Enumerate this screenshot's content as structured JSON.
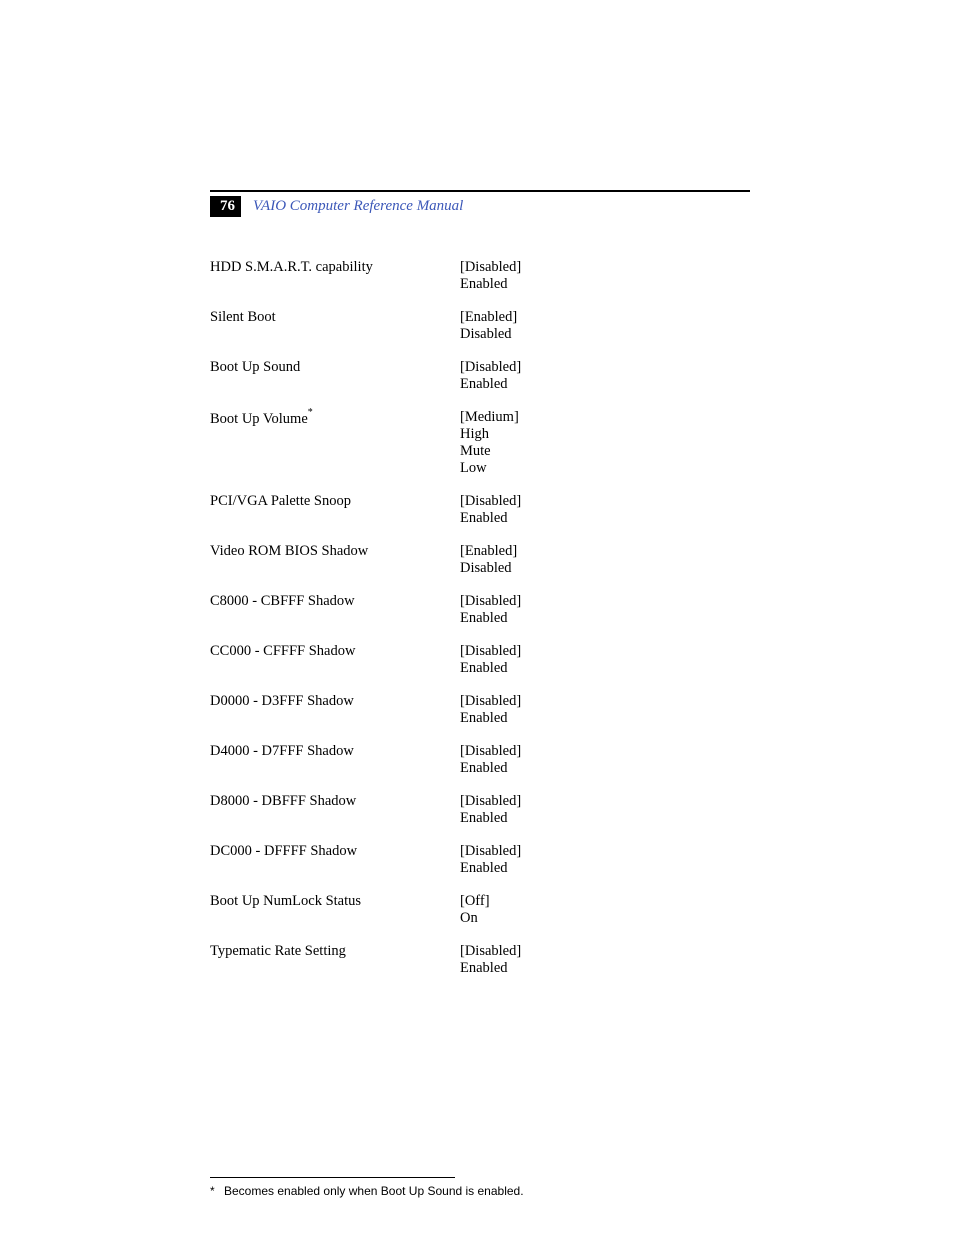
{
  "page_number": "76",
  "header_title": "VAIO Computer Reference Manual",
  "colors": {
    "header_title": "#3b57b8",
    "page_number_bg": "#000000",
    "page_number_fg": "#ffffff",
    "text": "#000000",
    "background": "#ffffff"
  },
  "fonts": {
    "body_family": "Palatino Linotype, Book Antiqua, Palatino, serif",
    "body_size_pt": 11,
    "footnote_family": "Arial, Helvetica, sans-serif",
    "footnote_size_pt": 9
  },
  "settings": [
    {
      "label": "HDD S.M.A.R.T. capability",
      "footnote_mark": "",
      "values": [
        "[Disabled]",
        "Enabled"
      ]
    },
    {
      "label": "Silent Boot",
      "footnote_mark": "",
      "values": [
        "[Enabled]",
        "Disabled"
      ]
    },
    {
      "label": "Boot Up Sound",
      "footnote_mark": "",
      "values": [
        "[Disabled]",
        "Enabled"
      ]
    },
    {
      "label": "Boot Up Volume",
      "footnote_mark": "*",
      "values": [
        "[Medium]",
        "High",
        "Mute",
        "Low"
      ]
    },
    {
      "label": "PCI/VGA Palette Snoop",
      "footnote_mark": "",
      "values": [
        "[Disabled]",
        "Enabled"
      ]
    },
    {
      "label": "Video ROM BIOS Shadow",
      "footnote_mark": "",
      "values": [
        "[Enabled]",
        "Disabled"
      ]
    },
    {
      "label": "C8000 - CBFFF Shadow",
      "footnote_mark": "",
      "values": [
        "[Disabled]",
        "Enabled"
      ]
    },
    {
      "label": "CC000 - CFFFF Shadow",
      "footnote_mark": "",
      "values": [
        "[Disabled]",
        "Enabled"
      ]
    },
    {
      "label": "D0000 - D3FFF Shadow",
      "footnote_mark": "",
      "values": [
        "[Disabled]",
        "Enabled"
      ]
    },
    {
      "label": "D4000 - D7FFF Shadow",
      "footnote_mark": "",
      "values": [
        "[Disabled]",
        "Enabled"
      ]
    },
    {
      "label": "D8000 - DBFFF Shadow",
      "footnote_mark": "",
      "values": [
        "[Disabled]",
        "Enabled"
      ]
    },
    {
      "label": "DC000 - DFFFF Shadow",
      "footnote_mark": "",
      "values": [
        "[Disabled]",
        "Enabled"
      ]
    },
    {
      "label": "Boot Up NumLock Status",
      "footnote_mark": "",
      "values": [
        "[Off]",
        "On"
      ]
    },
    {
      "label": "Typematic Rate Setting",
      "footnote_mark": "",
      "values": [
        "[Disabled]",
        "Enabled"
      ]
    }
  ],
  "footnote": {
    "mark": "*",
    "text": "Becomes enabled only when Boot Up Sound is enabled."
  }
}
